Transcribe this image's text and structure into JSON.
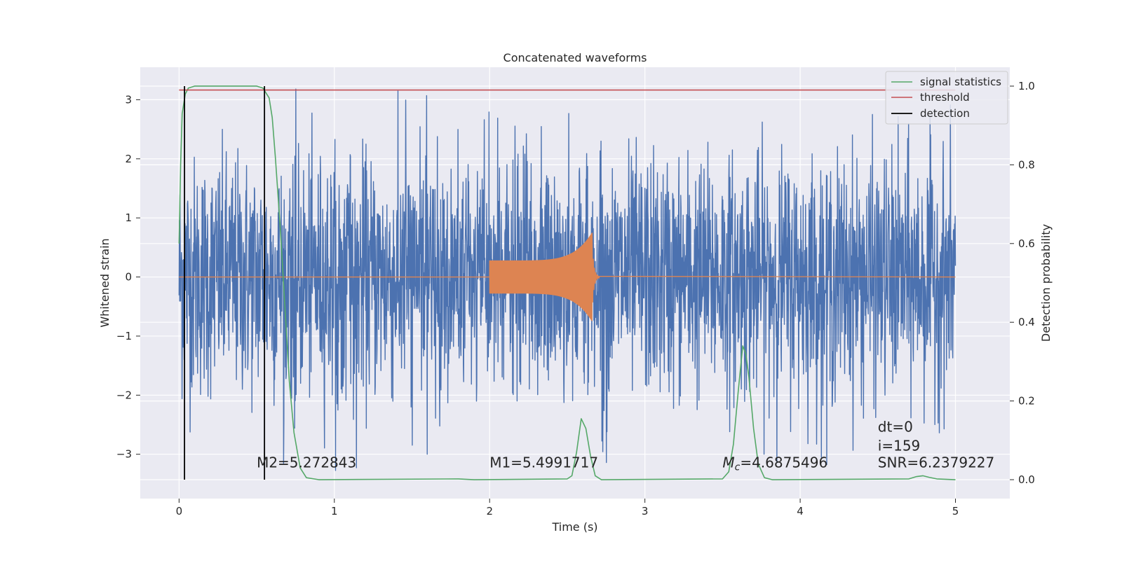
{
  "chart_data": {
    "type": "line",
    "title": "Concatenated waveforms",
    "xlabel": "Time (s)",
    "ylabel_left": "Whitened strain",
    "ylabel_right": "Detection probability",
    "xlim": [
      -0.25,
      5.35
    ],
    "ylim_left": [
      -3.75,
      3.55
    ],
    "ylim_right": [
      -0.048,
      1.048
    ],
    "x_ticks": [
      0,
      1,
      2,
      3,
      4,
      5
    ],
    "x_tick_labels": [
      "0",
      "1",
      "2",
      "3",
      "4",
      "5"
    ],
    "y_ticks_left": [
      -3,
      -2,
      -1,
      0,
      1,
      2,
      3
    ],
    "y_tick_labels_left": [
      "−3",
      "−2",
      "−1",
      "0",
      "1",
      "2",
      "3"
    ],
    "y_ticks_right": [
      0.0,
      0.2,
      0.4,
      0.6,
      0.8,
      1.0
    ],
    "y_tick_labels_right": [
      "0.0",
      "0.2",
      "0.4",
      "0.6",
      "0.8",
      "1.0"
    ],
    "grid": true,
    "legend_position": "top-right",
    "legend": [
      "signal statistics",
      "threshold",
      "detection"
    ],
    "series": [
      {
        "name": "whitened strain",
        "axis": "left",
        "color": "#4c72b0",
        "description_range": {
          "x": [
            0,
            5
          ],
          "y_min": -3.3,
          "y_max": 3.2
        }
      },
      {
        "name": "injected waveform",
        "axis": "left",
        "color": "#dd8452",
        "chirp": {
          "x_start": 2.0,
          "x_end": 2.66,
          "peak_amplitude": 0.75
        }
      },
      {
        "name": "signal statistics",
        "axis": "right",
        "color": "#55a868",
        "points": [
          [
            0.0,
            0.6
          ],
          [
            0.01,
            0.8
          ],
          [
            0.02,
            0.93
          ],
          [
            0.04,
            0.98
          ],
          [
            0.06,
            0.995
          ],
          [
            0.1,
            1.0
          ],
          [
            0.5,
            1.0
          ],
          [
            0.54,
            0.995
          ],
          [
            0.58,
            0.97
          ],
          [
            0.6,
            0.92
          ],
          [
            0.62,
            0.82
          ],
          [
            0.65,
            0.65
          ],
          [
            0.68,
            0.45
          ],
          [
            0.71,
            0.25
          ],
          [
            0.74,
            0.12
          ],
          [
            0.78,
            0.03
          ],
          [
            0.82,
            0.005
          ],
          [
            0.9,
            0.0
          ],
          [
            1.8,
            0.002
          ],
          [
            1.9,
            0.0
          ],
          [
            2.5,
            0.002
          ],
          [
            2.53,
            0.01
          ],
          [
            2.56,
            0.07
          ],
          [
            2.59,
            0.155
          ],
          [
            2.62,
            0.13
          ],
          [
            2.65,
            0.06
          ],
          [
            2.68,
            0.01
          ],
          [
            2.72,
            0.0
          ],
          [
            3.5,
            0.002
          ],
          [
            3.54,
            0.02
          ],
          [
            3.57,
            0.09
          ],
          [
            3.6,
            0.22
          ],
          [
            3.63,
            0.34
          ],
          [
            3.65,
            0.32
          ],
          [
            3.67,
            0.26
          ],
          [
            3.7,
            0.13
          ],
          [
            3.73,
            0.04
          ],
          [
            3.77,
            0.005
          ],
          [
            3.82,
            0.0
          ],
          [
            4.7,
            0.002
          ],
          [
            4.75,
            0.008
          ],
          [
            4.79,
            0.01
          ],
          [
            4.83,
            0.006
          ],
          [
            4.88,
            0.002
          ],
          [
            5.0,
            0.0
          ]
        ]
      },
      {
        "name": "threshold",
        "axis": "right",
        "color": "#c44e52",
        "value": 0.99
      },
      {
        "name": "detection",
        "axis": "right",
        "color": "#000000",
        "x": [
          0.035,
          0.55
        ]
      }
    ],
    "annotations": [
      {
        "text": "M2=5.272843",
        "x": 0.5,
        "y": -3.22
      },
      {
        "text": "M1=5.4991717",
        "x": 2.0,
        "y": -3.22
      },
      {
        "text": "=4.6875496",
        "x": 3.5,
        "y": -3.22,
        "math_prefix": "M",
        "math_subscript": "c"
      },
      {
        "text": "dt=0",
        "x": 4.5,
        "y": -2.62
      },
      {
        "text": "i=159",
        "x": 4.5,
        "y": -2.94
      },
      {
        "text": "SNR=6.2379227",
        "x": 4.5,
        "y": -3.22
      }
    ]
  }
}
